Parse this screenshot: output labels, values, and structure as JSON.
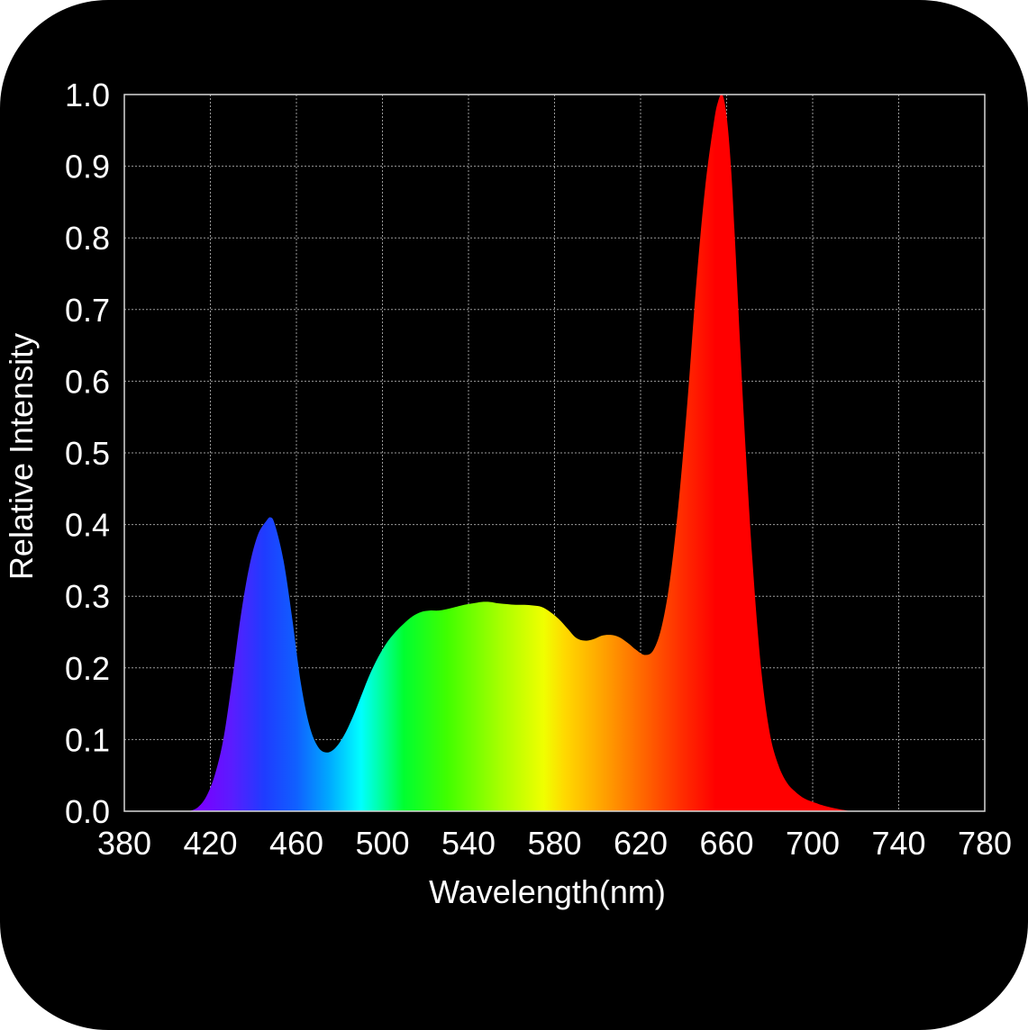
{
  "chart_data": {
    "type": "area",
    "title": "",
    "xlabel": "Wavelength(nm)",
    "ylabel": "Relative Intensity",
    "xlim": [
      380,
      780
    ],
    "ylim": [
      0.0,
      1.0
    ],
    "x_ticks": [
      380,
      420,
      460,
      500,
      540,
      580,
      620,
      660,
      700,
      740,
      780
    ],
    "y_ticks": [
      "0.0",
      "0.1",
      "0.2",
      "0.3",
      "0.4",
      "0.5",
      "0.6",
      "0.7",
      "0.8",
      "0.9",
      "1.0"
    ],
    "grid": true,
    "legend": "none",
    "fill": "visible-spectrum-gradient",
    "series": [
      {
        "x": [
          410,
          414,
          418,
          422,
          426,
          430,
          434,
          438,
          442,
          446,
          448,
          450,
          454,
          458,
          462,
          466,
          470,
          474,
          478,
          482,
          486,
          490,
          494,
          498,
          502,
          506,
          510,
          514,
          518,
          522,
          526,
          530,
          534,
          538,
          542,
          546,
          550,
          554,
          558,
          562,
          566,
          570,
          574,
          578,
          582,
          586,
          590,
          594,
          598,
          602,
          606,
          610,
          614,
          618,
          622,
          626,
          630,
          634,
          638,
          642,
          646,
          650,
          654,
          656,
          658,
          660,
          662,
          664,
          668,
          672,
          676,
          680,
          684,
          688,
          692,
          696,
          700,
          706,
          712,
          718
        ],
        "y": [
          0.0,
          0.005,
          0.02,
          0.05,
          0.1,
          0.18,
          0.27,
          0.34,
          0.385,
          0.405,
          0.41,
          0.4,
          0.35,
          0.27,
          0.18,
          0.12,
          0.09,
          0.082,
          0.088,
          0.105,
          0.13,
          0.16,
          0.19,
          0.215,
          0.235,
          0.25,
          0.262,
          0.272,
          0.278,
          0.28,
          0.28,
          0.282,
          0.285,
          0.288,
          0.29,
          0.292,
          0.292,
          0.29,
          0.289,
          0.288,
          0.288,
          0.287,
          0.285,
          0.278,
          0.268,
          0.255,
          0.242,
          0.238,
          0.24,
          0.245,
          0.246,
          0.243,
          0.235,
          0.225,
          0.218,
          0.225,
          0.26,
          0.33,
          0.44,
          0.58,
          0.74,
          0.87,
          0.96,
          0.99,
          1.0,
          0.97,
          0.9,
          0.79,
          0.55,
          0.35,
          0.2,
          0.11,
          0.065,
          0.04,
          0.027,
          0.018,
          0.013,
          0.007,
          0.003,
          0.0
        ]
      }
    ]
  }
}
